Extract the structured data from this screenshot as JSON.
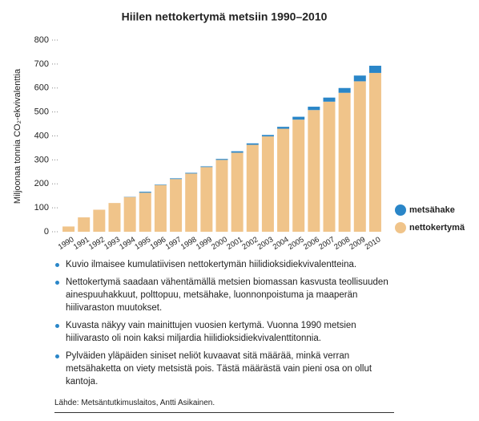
{
  "chart_data": {
    "type": "bar",
    "stacked": true,
    "title": "Hiilen nettokertymä metsiin 1990–2010",
    "y_label": "Miljoonaa tonnia CO₂-ekvivalenttia",
    "categories": [
      "1990",
      "1991",
      "1992",
      "1993",
      "1994",
      "1995",
      "1996",
      "1997",
      "1998",
      "1999",
      "2000",
      "2001",
      "2002",
      "2003",
      "2004",
      "2005",
      "2006",
      "2007",
      "2008",
      "2009",
      "2010"
    ],
    "series": [
      {
        "name": "metsähake",
        "color": "#2a86c8",
        "values": [
          0,
          0,
          0,
          0,
          1,
          4,
          2,
          3,
          3,
          3,
          4,
          6,
          6,
          6,
          8,
          12,
          14,
          17,
          20,
          24,
          30
        ]
      },
      {
        "name": "nettokertymä",
        "color": "#f0c48a",
        "values": [
          22,
          60,
          92,
          120,
          145,
          163,
          195,
          220,
          243,
          270,
          300,
          330,
          363,
          398,
          430,
          468,
          508,
          543,
          580,
          628,
          663
        ]
      }
    ],
    "ylim": [
      0,
      800
    ],
    "yticks": [
      0,
      100,
      200,
      300,
      400,
      500,
      600,
      700,
      800
    ],
    "legend": "right"
  },
  "notes": [
    "Kuvio ilmaisee kumulatiivisen nettokertymän hiilidioksidiekvivalentteina.",
    "Nettokertymä saadaan vähentämällä metsien biomassan kasvusta teollisuuden ainespuuhakkuut, polttopuu, metsähake, luonnonpoistuma ja maaperän hiilivaraston muutokset.",
    "Kuvasta näkyy vain mainittujen vuosien kertymä. Vuonna 1990 metsien hiilivarasto oli noin kaksi miljardia hiilidioksidiekvivalenttitonnia.",
    "Pylväiden yläpäiden siniset neliöt kuvaavat sitä määrää, minkä verran metsähaketta on viety metsistä pois. Tästä määrästä vain pieni osa on ollut kantoja."
  ],
  "source": "Lähde: Metsäntutkimuslaitos, Antti Asikainen."
}
